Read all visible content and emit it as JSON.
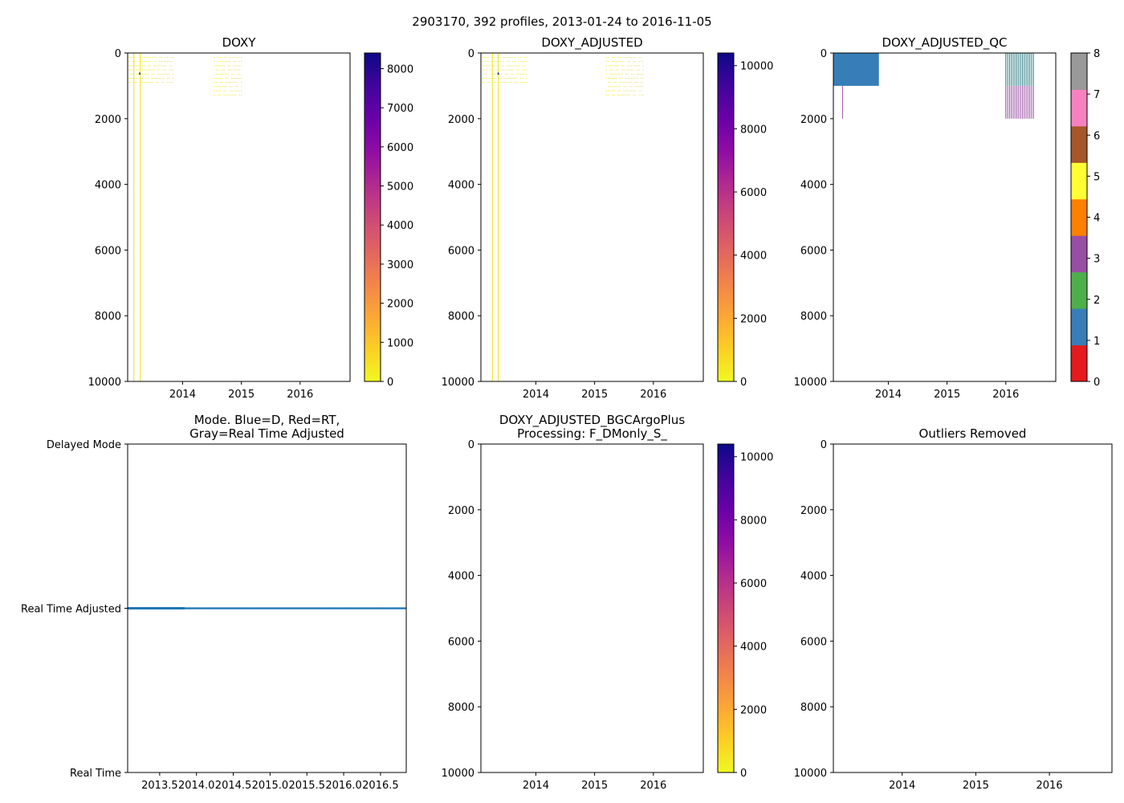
{
  "figure": {
    "suptitle": "2903170, 392 profiles, 2013-01-24 to 2016-11-05"
  },
  "colors": {
    "yellow_profile": "#f0e526",
    "qc_blue": "#377eb8",
    "qc_purple": "#984ea3",
    "qc_teal": "#2a7f85",
    "mode_blue": "#1f77b4"
  },
  "chart_data": [
    {
      "id": "doxy",
      "type": "heatmap",
      "title": "DOXY",
      "xlabel": "",
      "ylabel": "",
      "xlim": [
        2013.065,
        2016.85
      ],
      "ylim": [
        10000,
        0
      ],
      "xticks": [
        2014,
        2015,
        2016
      ],
      "xtick_labels": [
        "2014",
        "2015",
        "2016"
      ],
      "yticks": [
        0,
        2000,
        4000,
        6000,
        8000,
        10000
      ],
      "ytick_labels": [
        "0",
        "2000",
        "4000",
        "6000",
        "8000",
        "10000"
      ],
      "colorbar": {
        "colormap": "plasma_r",
        "range": [
          0,
          8400
        ],
        "ticks": [
          0,
          1000,
          2000,
          3000,
          4000,
          5000,
          6000,
          7000,
          8000
        ],
        "tick_labels": [
          "0",
          "1000",
          "2000",
          "3000",
          "4000",
          "5000",
          "6000",
          "7000",
          "8000"
        ]
      },
      "data_blocks": [
        {
          "x": [
            2013.065,
            2013.84
          ],
          "depth": [
            0,
            1000
          ],
          "value": 250
        },
        {
          "x": [
            2014.52,
            2015.02
          ],
          "depth": [
            0,
            1300
          ],
          "value": 250
        }
      ],
      "deep_profiles": [
        {
          "x": 2013.17,
          "depth": [
            0,
            10000
          ],
          "value": 250
        },
        {
          "x": 2013.28,
          "depth": [
            0,
            10000
          ],
          "value": 250
        }
      ],
      "max_point": {
        "x": 2013.26,
        "depth": 620,
        "value": 8400
      }
    },
    {
      "id": "doxy-adjusted",
      "type": "heatmap",
      "title": "DOXY_ADJUSTED",
      "xlabel": "",
      "ylabel": "",
      "xlim": [
        2013.065,
        2016.85
      ],
      "ylim": [
        10000,
        0
      ],
      "xticks": [
        2014,
        2015,
        2016
      ],
      "xtick_labels": [
        "2014",
        "2015",
        "2016"
      ],
      "yticks": [
        0,
        2000,
        4000,
        6000,
        8000,
        10000
      ],
      "ytick_labels": [
        "0",
        "2000",
        "4000",
        "6000",
        "8000",
        "10000"
      ],
      "colorbar": {
        "colormap": "plasma_r",
        "range": [
          0,
          10400
        ],
        "ticks": [
          0,
          2000,
          4000,
          6000,
          8000,
          10000
        ],
        "tick_labels": [
          "0",
          "2000",
          "4000",
          "6000",
          "8000",
          "10000"
        ]
      },
      "data_blocks": [
        {
          "x": [
            2013.065,
            2013.84
          ],
          "depth": [
            0,
            1000
          ],
          "value": 250
        },
        {
          "x": [
            2015.18,
            2015.84
          ],
          "depth": [
            0,
            1300
          ],
          "value": 250
        }
      ],
      "deep_profiles": [
        {
          "x": 2013.26,
          "depth": [
            0,
            10000
          ],
          "value": 250
        },
        {
          "x": 2013.36,
          "depth": [
            0,
            10000
          ],
          "value": 250
        }
      ],
      "max_point": {
        "x": 2013.35,
        "depth": 620,
        "value": 10400
      }
    },
    {
      "id": "doxy-adjusted-qc",
      "type": "heatmap",
      "title": "DOXY_ADJUSTED_QC",
      "xlabel": "",
      "ylabel": "",
      "xlim": [
        2013.065,
        2016.85
      ],
      "ylim": [
        10000,
        0
      ],
      "xticks": [
        2014,
        2015,
        2016
      ],
      "xtick_labels": [
        "2014",
        "2015",
        "2016"
      ],
      "yticks": [
        0,
        2000,
        4000,
        6000,
        8000,
        10000
      ],
      "ytick_labels": [
        "0",
        "2000",
        "4000",
        "6000",
        "8000",
        "10000"
      ],
      "colorbar": {
        "colormap": "Set1 (QC flags)",
        "range": [
          0,
          8
        ],
        "ticks": [
          0,
          1,
          2,
          3,
          4,
          5,
          6,
          7,
          8
        ],
        "tick_labels": [
          "0",
          "1",
          "2",
          "3",
          "4",
          "5",
          "6",
          "7",
          "8"
        ],
        "colors": [
          "#e41a1c",
          "#377eb8",
          "#4daf4a",
          "#984ea3",
          "#ff7f00",
          "#ffff33",
          "#a65628",
          "#f781bf",
          "#999999"
        ]
      },
      "flag1_block": {
        "x": [
          2013.065,
          2013.84
        ],
        "depth": [
          0,
          1000
        ],
        "flag": 1
      },
      "flag3_line": {
        "x": 2013.22,
        "depth": [
          0,
          2000
        ],
        "flag": 3
      },
      "profiles_2016": {
        "x_start": 2016.0,
        "x_end": 2016.47,
        "count": 16,
        "upper": {
          "depth": [
            0,
            1000
          ],
          "flag": 1
        },
        "lower": {
          "depth": [
            1000,
            2000
          ],
          "flag": 3
        }
      }
    },
    {
      "id": "mode",
      "type": "scatter",
      "title": "Mode. Blue=D, Red=RT,\nGray=Real Time Adjusted",
      "title_lines": [
        "Mode. Blue=D, Red=RT,",
        "Gray=Real Time Adjusted"
      ],
      "xlabel": "",
      "ylabel": "",
      "xlim": [
        2013.065,
        2016.85
      ],
      "ylim": [
        0,
        2
      ],
      "xticks": [
        2013.5,
        2014.0,
        2014.5,
        2015.0,
        2015.5,
        2016.0,
        2016.5
      ],
      "xtick_labels": [
        "2013.5",
        "2014.0",
        "2014.5",
        "2015.0",
        "2015.5",
        "2016.0",
        "2016.5"
      ],
      "yticks": [
        2,
        1,
        0
      ],
      "ytick_labels": [
        "Delayed Mode",
        "Real Time Adjusted",
        "Real Time"
      ],
      "series": [
        {
          "name": "Real Time Adjusted",
          "y": 1,
          "x_dense": [
            2013.065,
            2013.84
          ],
          "x_sparse": [
            2013.84,
            2016.85
          ],
          "marker_step": 0.02
        }
      ]
    },
    {
      "id": "doxy-adjusted-bgc",
      "type": "heatmap",
      "title": "DOXY_ADJUSTED_BGCArgoPlus\nProcessing: F_DMonly_S_",
      "title_lines": [
        "DOXY_ADJUSTED_BGCArgoPlus",
        "Processing: F_DMonly_S_"
      ],
      "xlabel": "",
      "ylabel": "",
      "xlim": [
        2013.065,
        2016.85
      ],
      "ylim": [
        10000,
        0
      ],
      "xticks": [
        2014,
        2015,
        2016
      ],
      "xtick_labels": [
        "2014",
        "2015",
        "2016"
      ],
      "yticks": [
        0,
        2000,
        4000,
        6000,
        8000,
        10000
      ],
      "ytick_labels": [
        "0",
        "2000",
        "4000",
        "6000",
        "8000",
        "10000"
      ],
      "colorbar": {
        "colormap": "plasma_r",
        "range": [
          0,
          10400
        ],
        "ticks": [
          0,
          2000,
          4000,
          6000,
          8000,
          10000
        ],
        "tick_labels": [
          "0",
          "2000",
          "4000",
          "6000",
          "8000",
          "10000"
        ]
      }
    },
    {
      "id": "outliers",
      "type": "heatmap",
      "title": "Outliers Removed",
      "xlabel": "",
      "ylabel": "",
      "xlim": [
        2013.065,
        2016.85
      ],
      "ylim": [
        10000,
        0
      ],
      "xticks": [
        2014,
        2015,
        2016
      ],
      "xtick_labels": [
        "2014",
        "2015",
        "2016"
      ],
      "yticks": [
        0,
        2000,
        4000,
        6000,
        8000,
        10000
      ],
      "ytick_labels": [
        "0",
        "2000",
        "4000",
        "6000",
        "8000",
        "10000"
      ]
    }
  ]
}
